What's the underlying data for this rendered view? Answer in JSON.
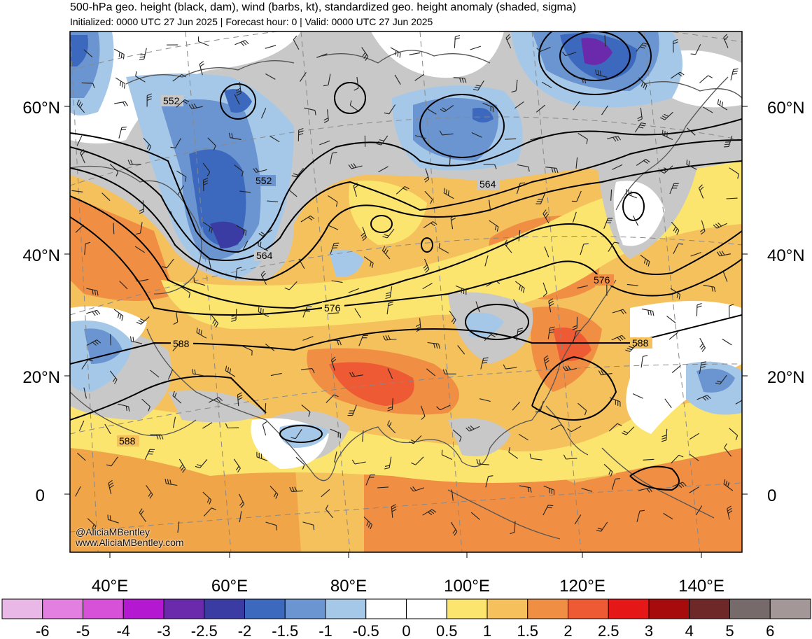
{
  "header": {
    "title": "500-hPa geo. height (black, dam), wind (barbs, kt), standardized geo. height anomaly (shaded, sigma)",
    "subtitle": "Initialized: 0000 UTC 27 Jun 2025 | Forecast hour: 0 | Valid: 0000 UTC 27 Jun 2025"
  },
  "credit": {
    "handle": "@AliciaMBentley",
    "url": "www.AliciaMBentley.com"
  },
  "lat_labels": [
    "60°N",
    "40°N",
    "20°N",
    "0"
  ],
  "lon_labels": [
    "40°E",
    "60°E",
    "80°E",
    "100°E",
    "120°E",
    "140°E"
  ],
  "contour_labels": [
    "552",
    "552",
    "564",
    "564",
    "576",
    "576",
    "588",
    "588",
    "588"
  ],
  "colorbar": {
    "ticks": [
      "-6",
      "-5",
      "-4",
      "-3",
      "-2.5",
      "-2",
      "-1.5",
      "-1",
      "-0.5",
      "0",
      "0.5",
      "1",
      "1.5",
      "2",
      "2.5",
      "3",
      "4",
      "5",
      "6"
    ],
    "colors": [
      "#eab8e6",
      "#e37fe1",
      "#d651d8",
      "#b418d0",
      "#6b2aab",
      "#3b3ca3",
      "#3c69bd",
      "#6b95d0",
      "#a6c8e8",
      "#ffffff",
      "#ffffff",
      "#fbe56e",
      "#f6c05c",
      "#f08f44",
      "#ee5a34",
      "#e51717",
      "#a80b0b",
      "#6f2828",
      "#766a6a",
      "#a49797"
    ]
  },
  "colors": {
    "land_background": "#f5c15c",
    "neutral_gray": "#c8c8c8",
    "contour": "#000000",
    "border": "#555555"
  }
}
